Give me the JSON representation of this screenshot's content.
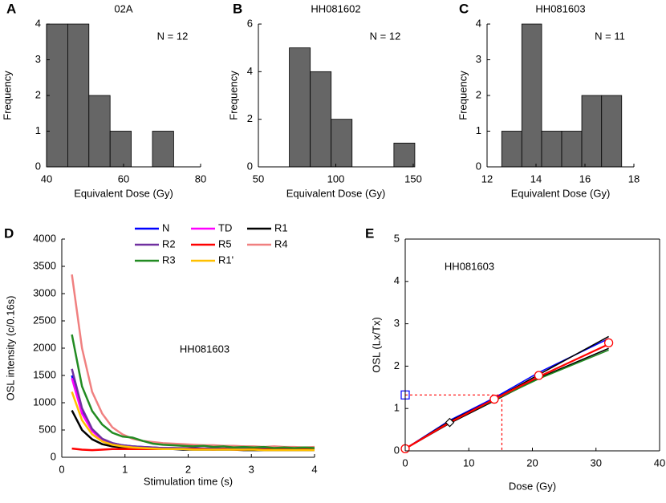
{
  "chart_data": [
    {
      "type": "histogram",
      "panel": "A",
      "title": "02A",
      "xlabel": "Equivalent Dose (Gy)",
      "ylabel": "Frequency",
      "annotation": "N = 12",
      "bins": [
        40,
        45.5,
        51,
        56.5,
        62,
        67.5,
        73
      ],
      "values": [
        4,
        4,
        2,
        1,
        0,
        1
      ],
      "color": "#666666",
      "xlim": [
        40,
        80
      ],
      "xticks": [
        40,
        60,
        80
      ],
      "ylim": [
        0,
        4
      ],
      "yticks": [
        0,
        1,
        2,
        3,
        4
      ]
    },
    {
      "type": "histogram",
      "panel": "B",
      "title": "HH081602",
      "xlabel": "Equivalent Dose (Gy)",
      "ylabel": "Frequency",
      "annotation": "N = 12",
      "bins": [
        70,
        83.5,
        97,
        110.5,
        124,
        137.5,
        151
      ],
      "values": [
        5,
        4,
        2,
        0,
        0,
        1
      ],
      "color": "#666666",
      "xlim": [
        50,
        150
      ],
      "xticks": [
        50,
        100,
        150
      ],
      "ylim": [
        0,
        6
      ],
      "yticks": [
        0,
        2,
        4,
        6
      ]
    },
    {
      "type": "histogram",
      "panel": "C",
      "title": "HH081603",
      "xlabel": "Equivalent Dose (Gy)",
      "ylabel": "Frequency",
      "annotation": "N = 11",
      "bins": [
        12.6,
        13.42,
        14.23,
        15.05,
        15.87,
        16.68,
        17.5
      ],
      "values": [
        1,
        4,
        1,
        1,
        2,
        2
      ],
      "color": "#666666",
      "xlim": [
        12,
        18
      ],
      "xticks": [
        12,
        14,
        16,
        18
      ],
      "ylim": [
        0,
        4
      ],
      "yticks": [
        0,
        1,
        2,
        3,
        4
      ]
    },
    {
      "type": "line",
      "panel": "D",
      "xlabel": "Stimulation time (s)",
      "ylabel": "OSL intensity (c/0.16s)",
      "annotation": "HH081603",
      "xlim": [
        0,
        4
      ],
      "xticks": [
        0,
        1,
        2,
        3,
        4
      ],
      "ylim": [
        0,
        4000
      ],
      "yticks": [
        0,
        500,
        1000,
        1500,
        2000,
        2500,
        3000,
        3500,
        4000
      ],
      "x": [
        0.16,
        0.32,
        0.48,
        0.64,
        0.8,
        0.96,
        1.12,
        1.28,
        1.44,
        1.6,
        1.76,
        1.92,
        2.08,
        2.24,
        2.4,
        2.56,
        2.72,
        2.88,
        3.04,
        3.2,
        3.36,
        3.52,
        3.68,
        3.84,
        4.0
      ],
      "series": [
        {
          "name": "N",
          "color": "#0000ff",
          "values": [
            1500,
            850,
            500,
            330,
            260,
            220,
            200,
            190,
            180,
            170,
            170,
            160,
            170,
            160,
            160,
            150,
            160,
            150,
            150,
            150,
            150,
            140,
            150,
            140,
            150
          ]
        },
        {
          "name": "TD",
          "color": "#ff00ff",
          "values": [
            1450,
            800,
            480,
            320,
            250,
            210,
            190,
            180,
            170,
            170,
            160,
            160,
            160,
            150,
            150,
            150,
            150,
            150,
            150,
            150,
            140,
            140,
            140,
            140,
            140
          ]
        },
        {
          "name": "R1",
          "color": "#000000",
          "values": [
            860,
            500,
            330,
            240,
            200,
            180,
            170,
            160,
            150,
            150,
            150,
            140,
            140,
            140,
            140,
            140,
            140,
            130,
            130,
            130,
            130,
            130,
            130,
            130,
            130
          ]
        },
        {
          "name": "R2",
          "color": "#7030a0",
          "values": [
            1620,
            900,
            520,
            340,
            260,
            220,
            200,
            190,
            180,
            170,
            170,
            170,
            160,
            160,
            160,
            160,
            150,
            150,
            150,
            150,
            150,
            150,
            150,
            150,
            150
          ]
        },
        {
          "name": "R5",
          "color": "#ff0000",
          "values": [
            160,
            140,
            130,
            140,
            150,
            150,
            150,
            150,
            150,
            150,
            150,
            150,
            150,
            150,
            140,
            150,
            140,
            140,
            150,
            140,
            150,
            140,
            140,
            150,
            140
          ]
        },
        {
          "name": "R4",
          "color": "#f08080",
          "values": [
            3350,
            2000,
            1200,
            800,
            550,
            420,
            340,
            300,
            280,
            260,
            250,
            240,
            230,
            220,
            220,
            210,
            210,
            200,
            200,
            190,
            200,
            190,
            190,
            180,
            190
          ]
        },
        {
          "name": "R3",
          "color": "#228b22",
          "values": [
            2250,
            1300,
            850,
            600,
            450,
            380,
            360,
            300,
            250,
            230,
            220,
            210,
            200,
            210,
            190,
            200,
            180,
            190,
            180,
            190,
            170,
            180,
            170,
            180,
            170
          ]
        },
        {
          "name": "R1'",
          "color": "#ffc000",
          "values": [
            1200,
            680,
            420,
            290,
            230,
            200,
            180,
            170,
            160,
            150,
            150,
            150,
            140,
            140,
            140,
            140,
            140,
            140,
            140,
            130,
            130,
            130,
            130,
            130,
            130
          ]
        }
      ]
    },
    {
      "type": "line",
      "panel": "E",
      "xlabel": "Dose (Gy)",
      "ylabel": "OSL (Lx/Tx)",
      "annotation": "HH081603",
      "box": true,
      "xlim": [
        0,
        40
      ],
      "xticks": [
        0,
        10,
        20,
        30,
        40
      ],
      "ylim": [
        0,
        5
      ],
      "yticks": [
        0,
        1,
        2,
        3,
        4,
        5
      ],
      "x": [
        0,
        7,
        14,
        21,
        32
      ],
      "series": [
        {
          "color": "#0000ff",
          "values": [
            0.05,
            0.72,
            1.25,
            1.85,
            2.65
          ]
        },
        {
          "color": "#000000",
          "values": [
            0.05,
            0.7,
            1.22,
            1.8,
            2.7
          ]
        },
        {
          "color": "#000000",
          "values": [
            0.05,
            0.65,
            1.18,
            1.72,
            2.42
          ]
        },
        {
          "color": "#228b22",
          "values": [
            0.05,
            0.68,
            1.2,
            1.7,
            2.38
          ]
        },
        {
          "color": "#ff0000",
          "values": [
            0.05,
            0.67,
            1.22,
            1.75,
            2.52
          ]
        }
      ],
      "points": {
        "color": "#ff0000",
        "x": [
          0,
          14,
          21,
          32
        ],
        "y": [
          0.05,
          1.22,
          1.78,
          2.55
        ]
      },
      "recycle_point": {
        "x": 7,
        "y": 0.67
      },
      "natural": {
        "color": "#0000ff",
        "x": 0,
        "y": 1.32
      },
      "equivalent_dose": 15.2
    }
  ]
}
